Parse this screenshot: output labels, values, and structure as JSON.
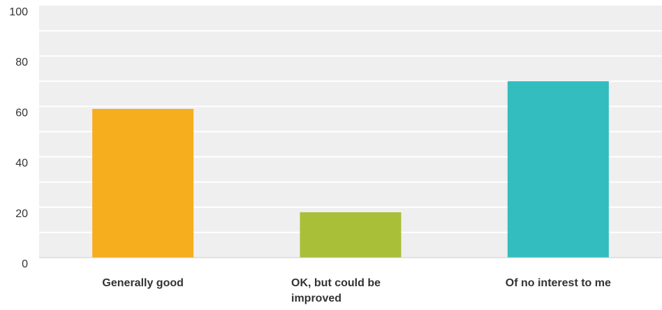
{
  "chart_data": {
    "type": "bar",
    "categories": [
      "Generally good",
      "OK, but could be improved",
      "Of no interest to me"
    ],
    "values": [
      59,
      18,
      70
    ],
    "colors": [
      "#f6ae1e",
      "#a9bf38",
      "#33bdbf"
    ],
    "ylim": [
      0,
      100
    ],
    "yticks": [
      0,
      20,
      40,
      60,
      80,
      100
    ],
    "grid": true,
    "plot_background": "#efefef",
    "gridline_color": "#ffffff",
    "title": "",
    "xlabel": "",
    "ylabel": ""
  }
}
